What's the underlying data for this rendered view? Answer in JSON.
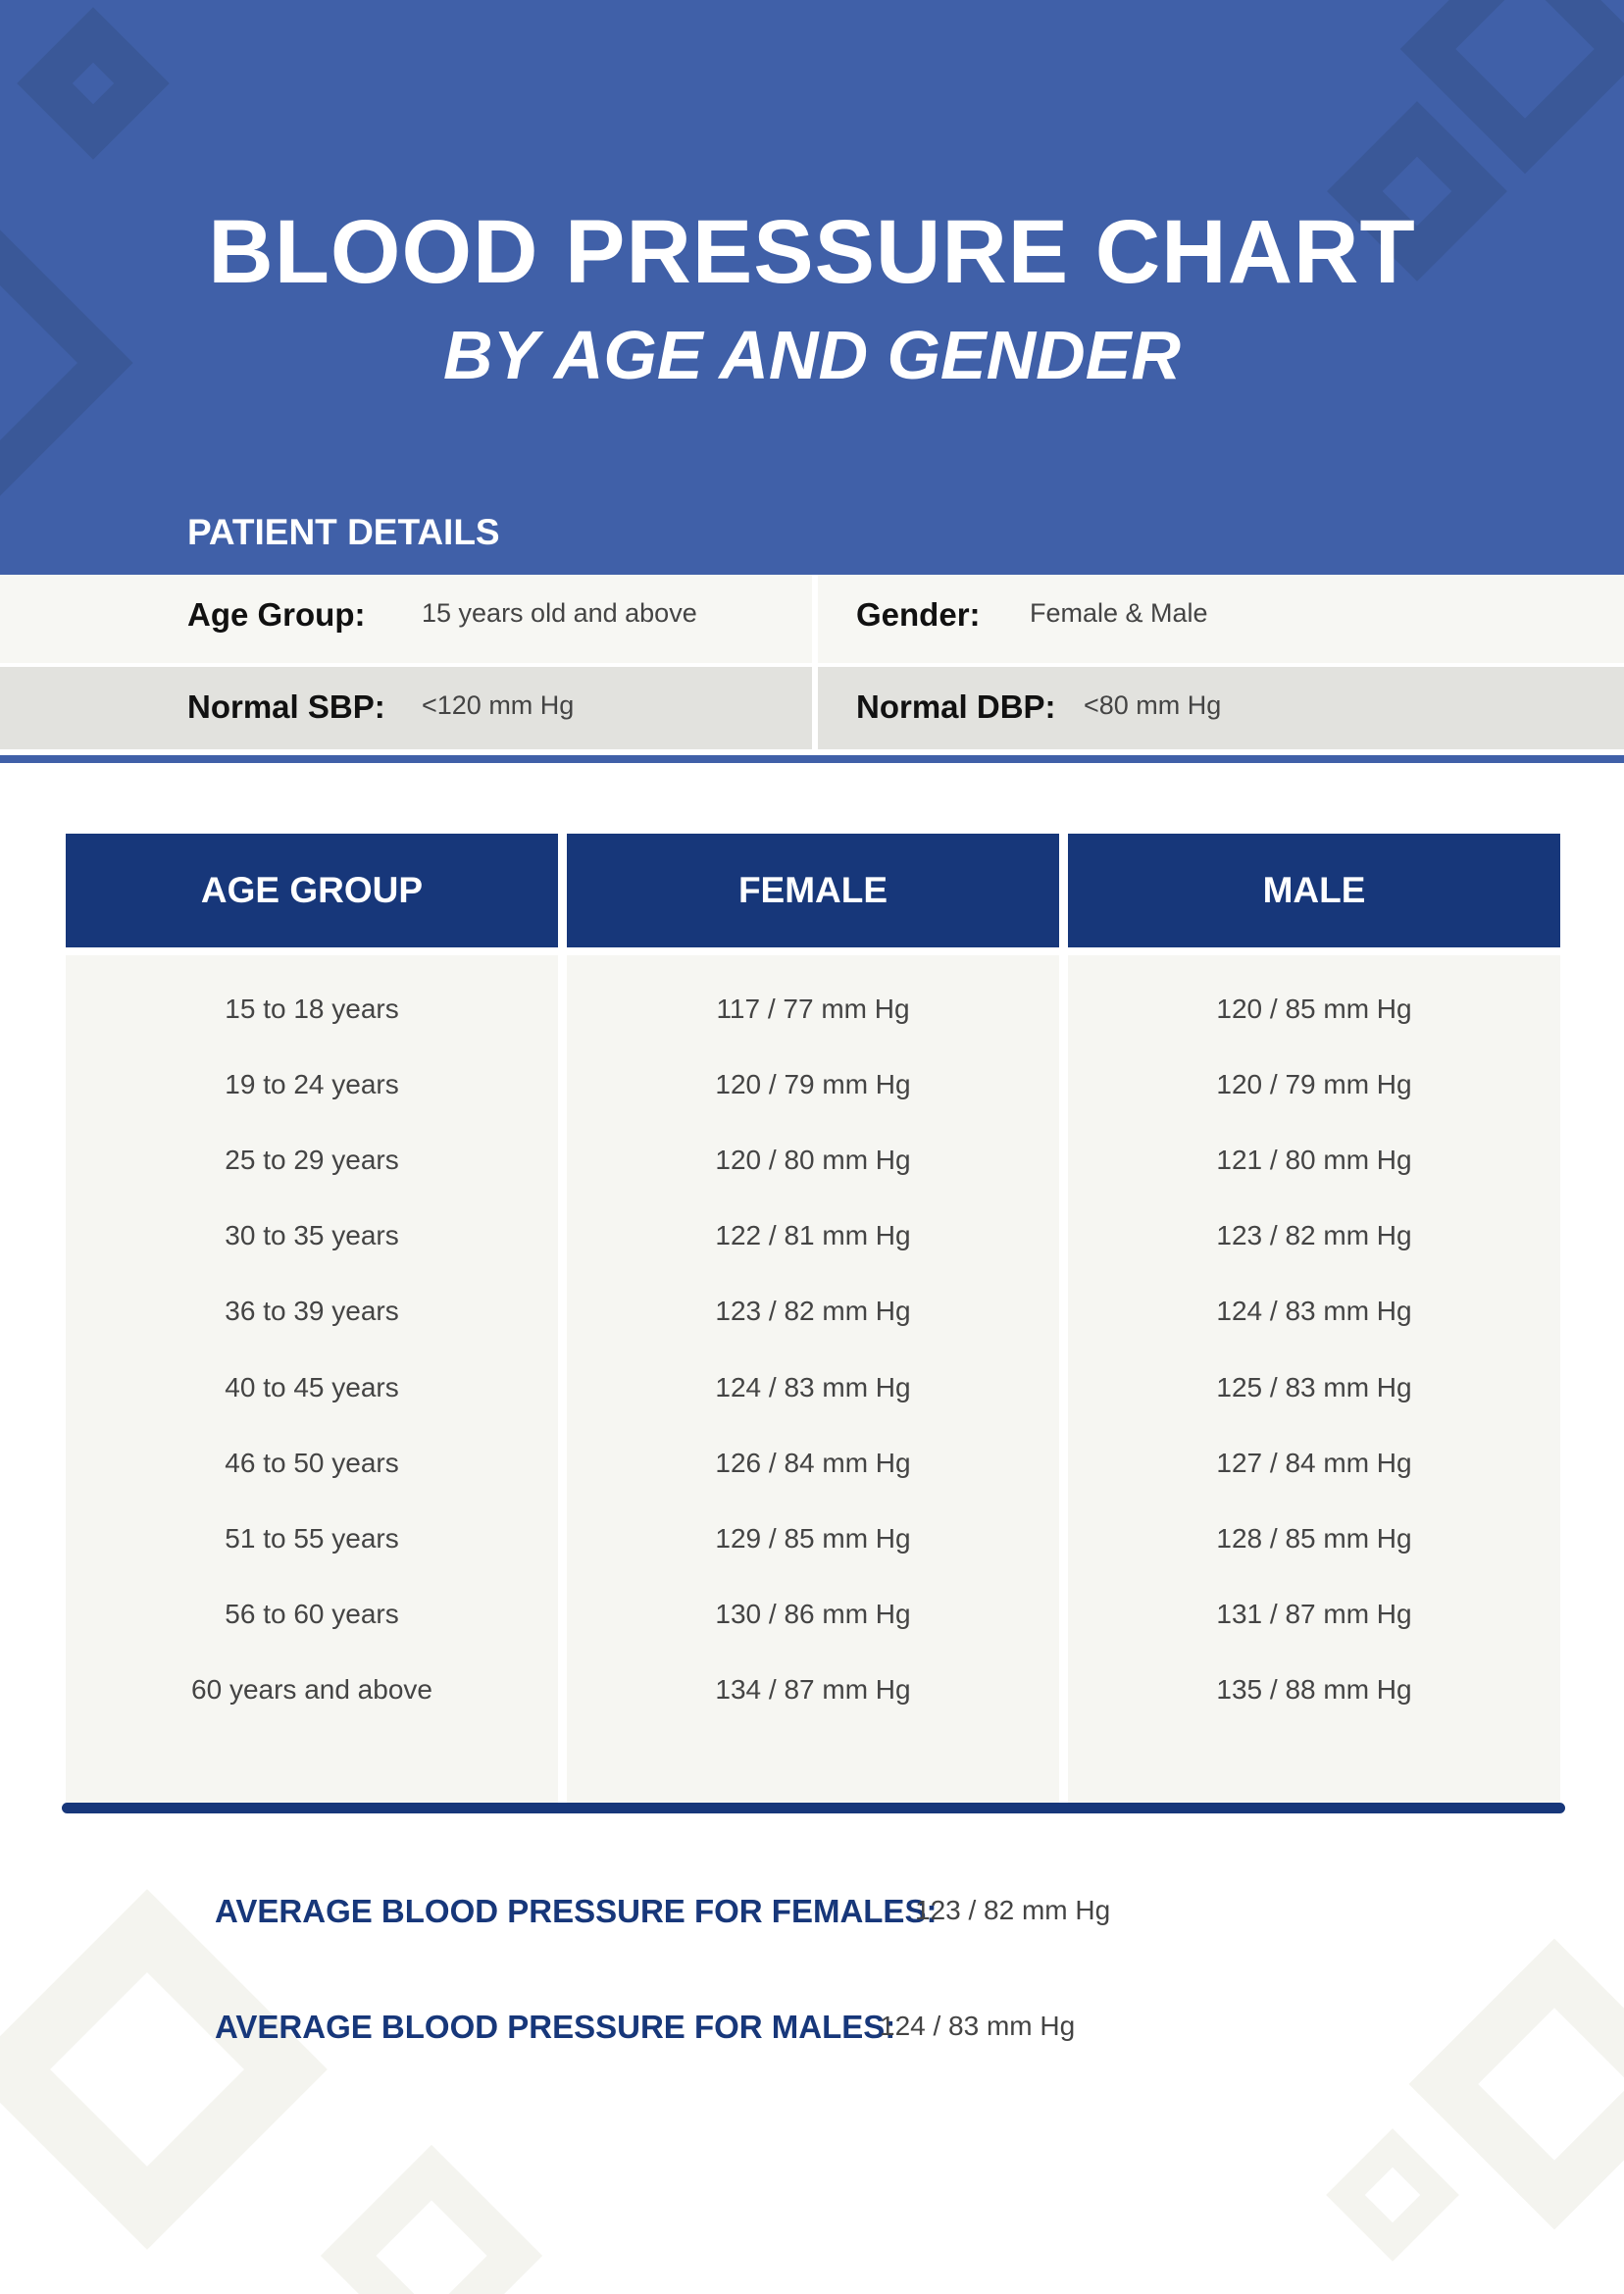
{
  "header": {
    "title": "BLOOD PRESSURE CHART",
    "subtitle": "BY AGE AND GENDER"
  },
  "patient_details": {
    "heading": "PATIENT DETAILS",
    "age_group_label": "Age Group:",
    "age_group_value": "15 years old and above",
    "gender_label": "Gender:",
    "gender_value": "Female & Male",
    "sbp_label": "Normal SBP:",
    "sbp_value": "<120 mm Hg",
    "dbp_label": "Normal DBP:",
    "dbp_value": "<80 mm Hg"
  },
  "table": {
    "headers": [
      "AGE GROUP",
      "FEMALE",
      "MALE"
    ],
    "age_groups": [
      "15 to 18 years",
      "19 to 24 years",
      "25 to 29 years",
      "30 to 35 years",
      "36 to 39 years",
      "40 to 45 years",
      "46 to 50 years",
      "51 to 55 years",
      "56 to 60 years",
      "60 years and above"
    ],
    "female": [
      "117 / 77 mm Hg",
      "120 / 79 mm Hg",
      "120 / 80 mm Hg",
      "122 / 81 mm Hg",
      "123 / 82 mm Hg",
      "124 / 83 mm Hg",
      "126 / 84 mm Hg",
      "129 / 85 mm Hg",
      "130 / 86 mm Hg",
      "134 / 87 mm Hg"
    ],
    "male": [
      "120 / 85 mm Hg",
      "120 / 79 mm Hg",
      "121 / 80 mm Hg",
      "123 / 82 mm Hg",
      "124 / 83 mm Hg",
      "125 / 83 mm Hg",
      "127 / 84 mm Hg",
      "128 / 85 mm Hg",
      "131 / 87 mm Hg",
      "135 / 88 mm Hg"
    ]
  },
  "averages": {
    "female_label": "AVERAGE BLOOD PRESSURE FOR FEMALES:",
    "female_value": "123 / 82 mm Hg",
    "male_label": "AVERAGE BLOOD PRESSURE FOR MALES:",
    "male_value": "124 / 83 mm Hg"
  },
  "colors": {
    "header_blue": "#4060a8",
    "navy": "#17377a",
    "light_row": "#f7f7f3",
    "gray_row": "#e2e2de"
  }
}
